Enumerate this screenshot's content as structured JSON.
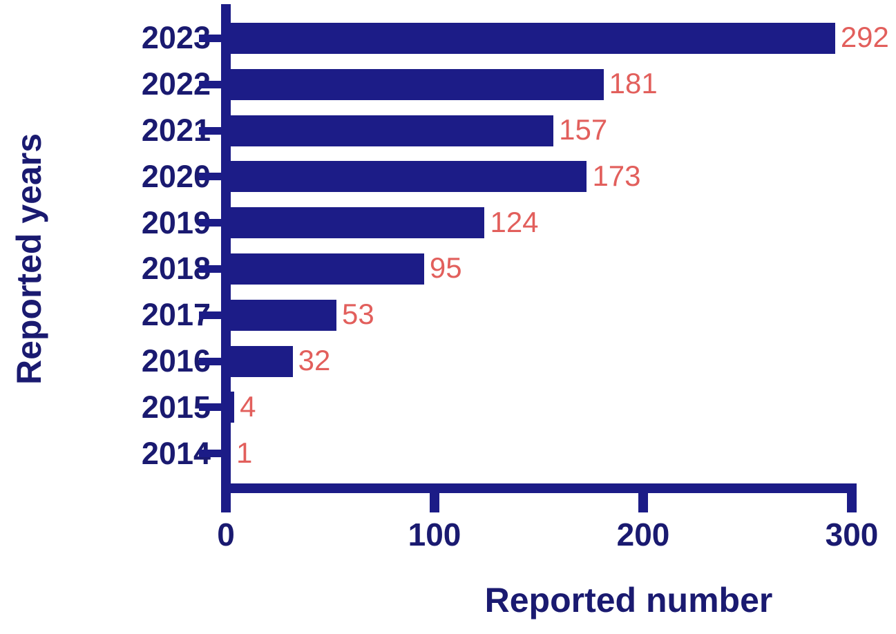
{
  "chart_data": {
    "type": "bar",
    "orientation": "horizontal",
    "title": "",
    "xlabel": "Reported number",
    "ylabel": "Reported years",
    "categories": [
      "2023",
      "2022",
      "2021",
      "2020",
      "2019",
      "2018",
      "2017",
      "2016",
      "2015",
      "2014"
    ],
    "values": [
      292,
      181,
      157,
      173,
      124,
      95,
      53,
      32,
      4,
      1
    ],
    "x_ticks": [
      0,
      100,
      200,
      300
    ],
    "xlim": [
      0,
      300
    ],
    "grid": false,
    "legend": "none",
    "colors": {
      "bar": "#1c1c87",
      "axis": "#1c1c87",
      "axis_text": "#1a1a70",
      "value_labels": "#e25f5c",
      "background": "#ffffff"
    }
  }
}
